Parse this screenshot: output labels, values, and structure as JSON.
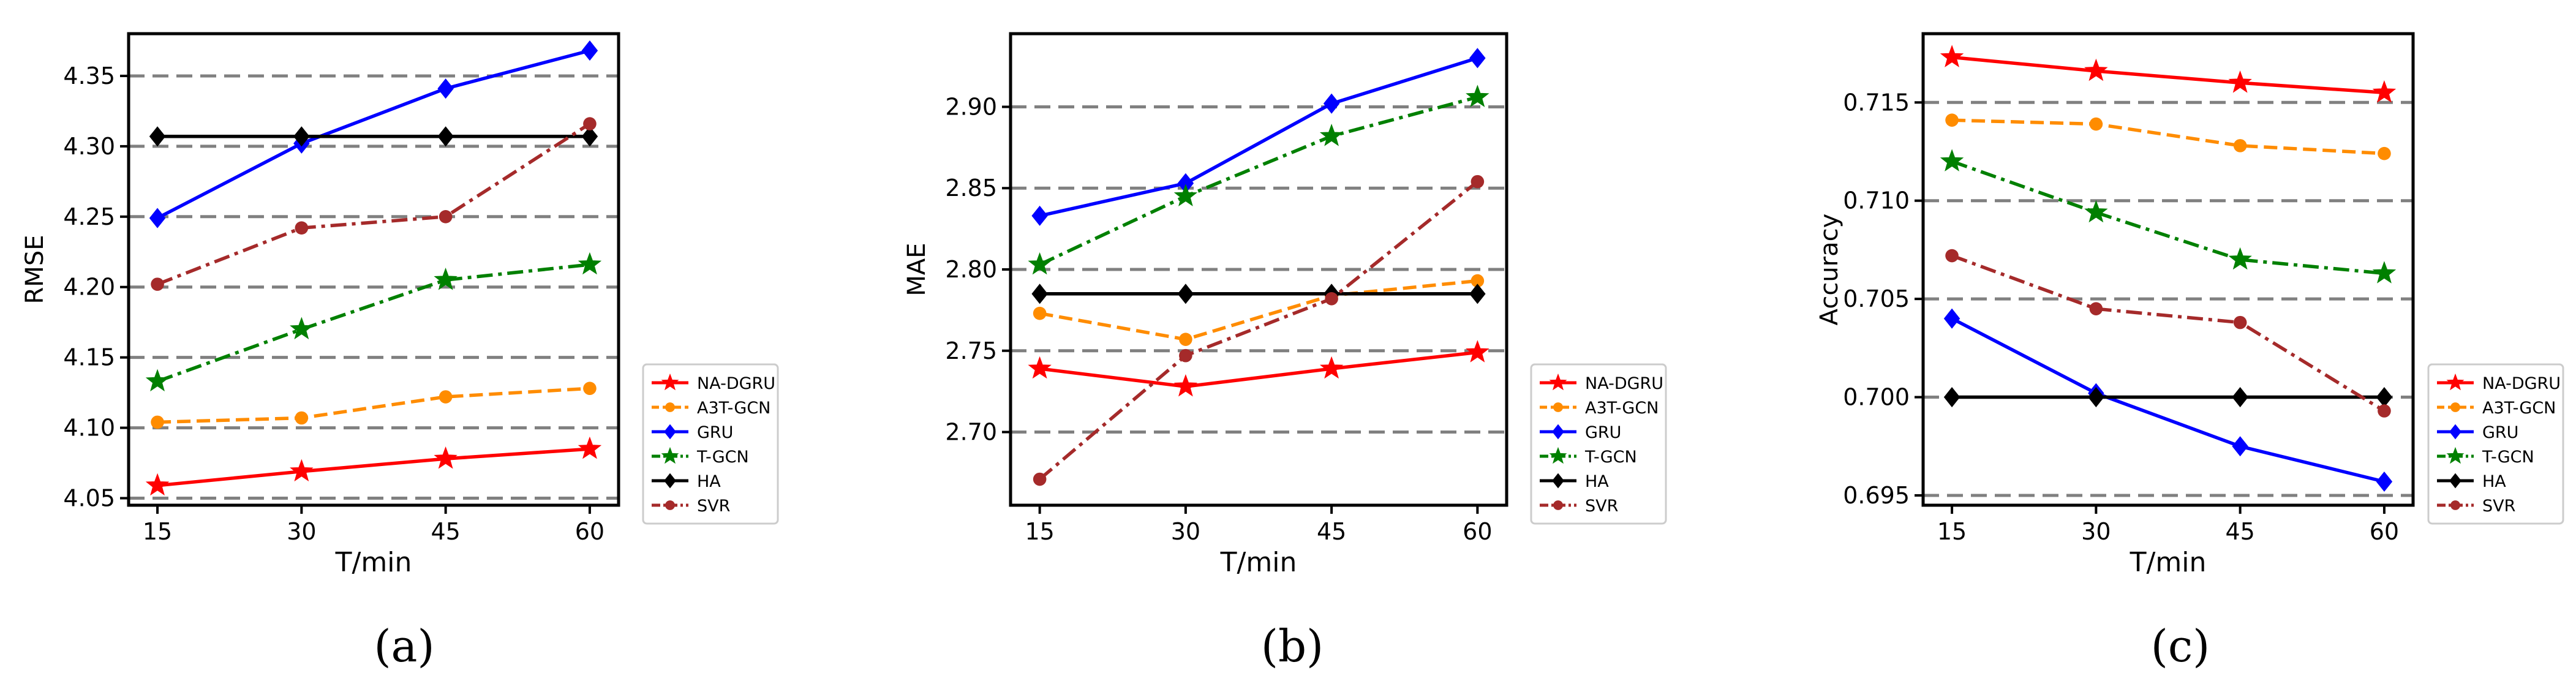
{
  "chart_data": [
    {
      "type": "line",
      "panel_label": "(a)",
      "xlabel": "T/min",
      "ylabel": "RMSE",
      "x": [
        15,
        30,
        45,
        60
      ],
      "ylim": [
        4.045,
        4.38
      ],
      "yticks": [
        4.05,
        4.1,
        4.15,
        4.2,
        4.25,
        4.3,
        4.35
      ],
      "ytick_labels": [
        "4.05",
        "4.10",
        "4.15",
        "4.20",
        "4.25",
        "4.30",
        "4.35"
      ],
      "grid": "horizontal-dashed",
      "legend_position": "right",
      "series": [
        {
          "name": "NA-DGRU",
          "color": "#ff0000",
          "marker": "star",
          "dash": "solid",
          "values": [
            4.059,
            4.069,
            4.078,
            4.085
          ]
        },
        {
          "name": "A3T-GCN",
          "color": "#ff8c00",
          "marker": "circle",
          "dash": "dashed",
          "values": [
            4.104,
            4.107,
            4.122,
            4.128
          ]
        },
        {
          "name": "GRU",
          "color": "#0000ff",
          "marker": "diamond",
          "dash": "solid",
          "values": [
            4.249,
            4.302,
            4.341,
            4.368
          ]
        },
        {
          "name": "T-GCN",
          "color": "#008000",
          "marker": "star",
          "dash": "dashdot",
          "values": [
            4.133,
            4.17,
            4.205,
            4.216
          ]
        },
        {
          "name": "HA",
          "color": "#000000",
          "marker": "diamond",
          "dash": "solid",
          "values": [
            4.307,
            4.307,
            4.307,
            4.307
          ]
        },
        {
          "name": "SVR",
          "color": "#a52a2a",
          "marker": "circle",
          "dash": "dashdot",
          "values": [
            4.202,
            4.242,
            4.25,
            4.316
          ]
        }
      ]
    },
    {
      "type": "line",
      "panel_label": "(b)",
      "xlabel": "T/min",
      "ylabel": "MAE",
      "x": [
        15,
        30,
        45,
        60
      ],
      "ylim": [
        2.655,
        2.945
      ],
      "yticks": [
        2.7,
        2.75,
        2.8,
        2.85,
        2.9
      ],
      "ytick_labels": [
        "2.70",
        "2.75",
        "2.80",
        "2.85",
        "2.90"
      ],
      "grid": "horizontal-dashed",
      "legend_position": "right",
      "series": [
        {
          "name": "NA-DGRU",
          "color": "#ff0000",
          "marker": "star",
          "dash": "solid",
          "values": [
            2.739,
            2.728,
            2.739,
            2.749
          ]
        },
        {
          "name": "A3T-GCN",
          "color": "#ff8c00",
          "marker": "circle",
          "dash": "dashed",
          "values": [
            2.773,
            2.757,
            2.784,
            2.793
          ]
        },
        {
          "name": "GRU",
          "color": "#0000ff",
          "marker": "diamond",
          "dash": "solid",
          "values": [
            2.833,
            2.853,
            2.902,
            2.93
          ]
        },
        {
          "name": "T-GCN",
          "color": "#008000",
          "marker": "star",
          "dash": "dashdot",
          "values": [
            2.803,
            2.845,
            2.882,
            2.906
          ]
        },
        {
          "name": "HA",
          "color": "#000000",
          "marker": "diamond",
          "dash": "solid",
          "values": [
            2.785,
            2.785,
            2.785,
            2.785
          ]
        },
        {
          "name": "SVR",
          "color": "#a52a2a",
          "marker": "circle",
          "dash": "dashdot",
          "values": [
            2.671,
            2.747,
            2.782,
            2.854
          ]
        }
      ]
    },
    {
      "type": "line",
      "panel_label": "(c)",
      "xlabel": "T/min",
      "ylabel": "Accuracy",
      "x": [
        15,
        30,
        45,
        60
      ],
      "ylim": [
        0.6945,
        0.7185
      ],
      "yticks": [
        0.695,
        0.7,
        0.705,
        0.71,
        0.715
      ],
      "ytick_labels": [
        "0.695",
        "0.700",
        "0.705",
        "0.710",
        "0.715"
      ],
      "grid": "horizontal-dashed",
      "legend_position": "right",
      "series": [
        {
          "name": "NA-DGRU",
          "color": "#ff0000",
          "marker": "star",
          "dash": "solid",
          "values": [
            0.7173,
            0.7166,
            0.716,
            0.7155
          ]
        },
        {
          "name": "A3T-GCN",
          "color": "#ff8c00",
          "marker": "circle",
          "dash": "dashed",
          "values": [
            0.7141,
            0.7139,
            0.7128,
            0.7124
          ]
        },
        {
          "name": "GRU",
          "color": "#0000ff",
          "marker": "diamond",
          "dash": "solid",
          "values": [
            0.704,
            0.7002,
            0.6975,
            0.6957
          ]
        },
        {
          "name": "T-GCN",
          "color": "#008000",
          "marker": "star",
          "dash": "dashdot",
          "values": [
            0.712,
            0.7094,
            0.707,
            0.7063
          ]
        },
        {
          "name": "HA",
          "color": "#000000",
          "marker": "diamond",
          "dash": "solid",
          "values": [
            0.7,
            0.7,
            0.7,
            0.7
          ]
        },
        {
          "name": "SVR",
          "color": "#a52a2a",
          "marker": "circle",
          "dash": "dashdot",
          "values": [
            0.7072,
            0.7045,
            0.7038,
            0.6993
          ]
        }
      ]
    }
  ]
}
